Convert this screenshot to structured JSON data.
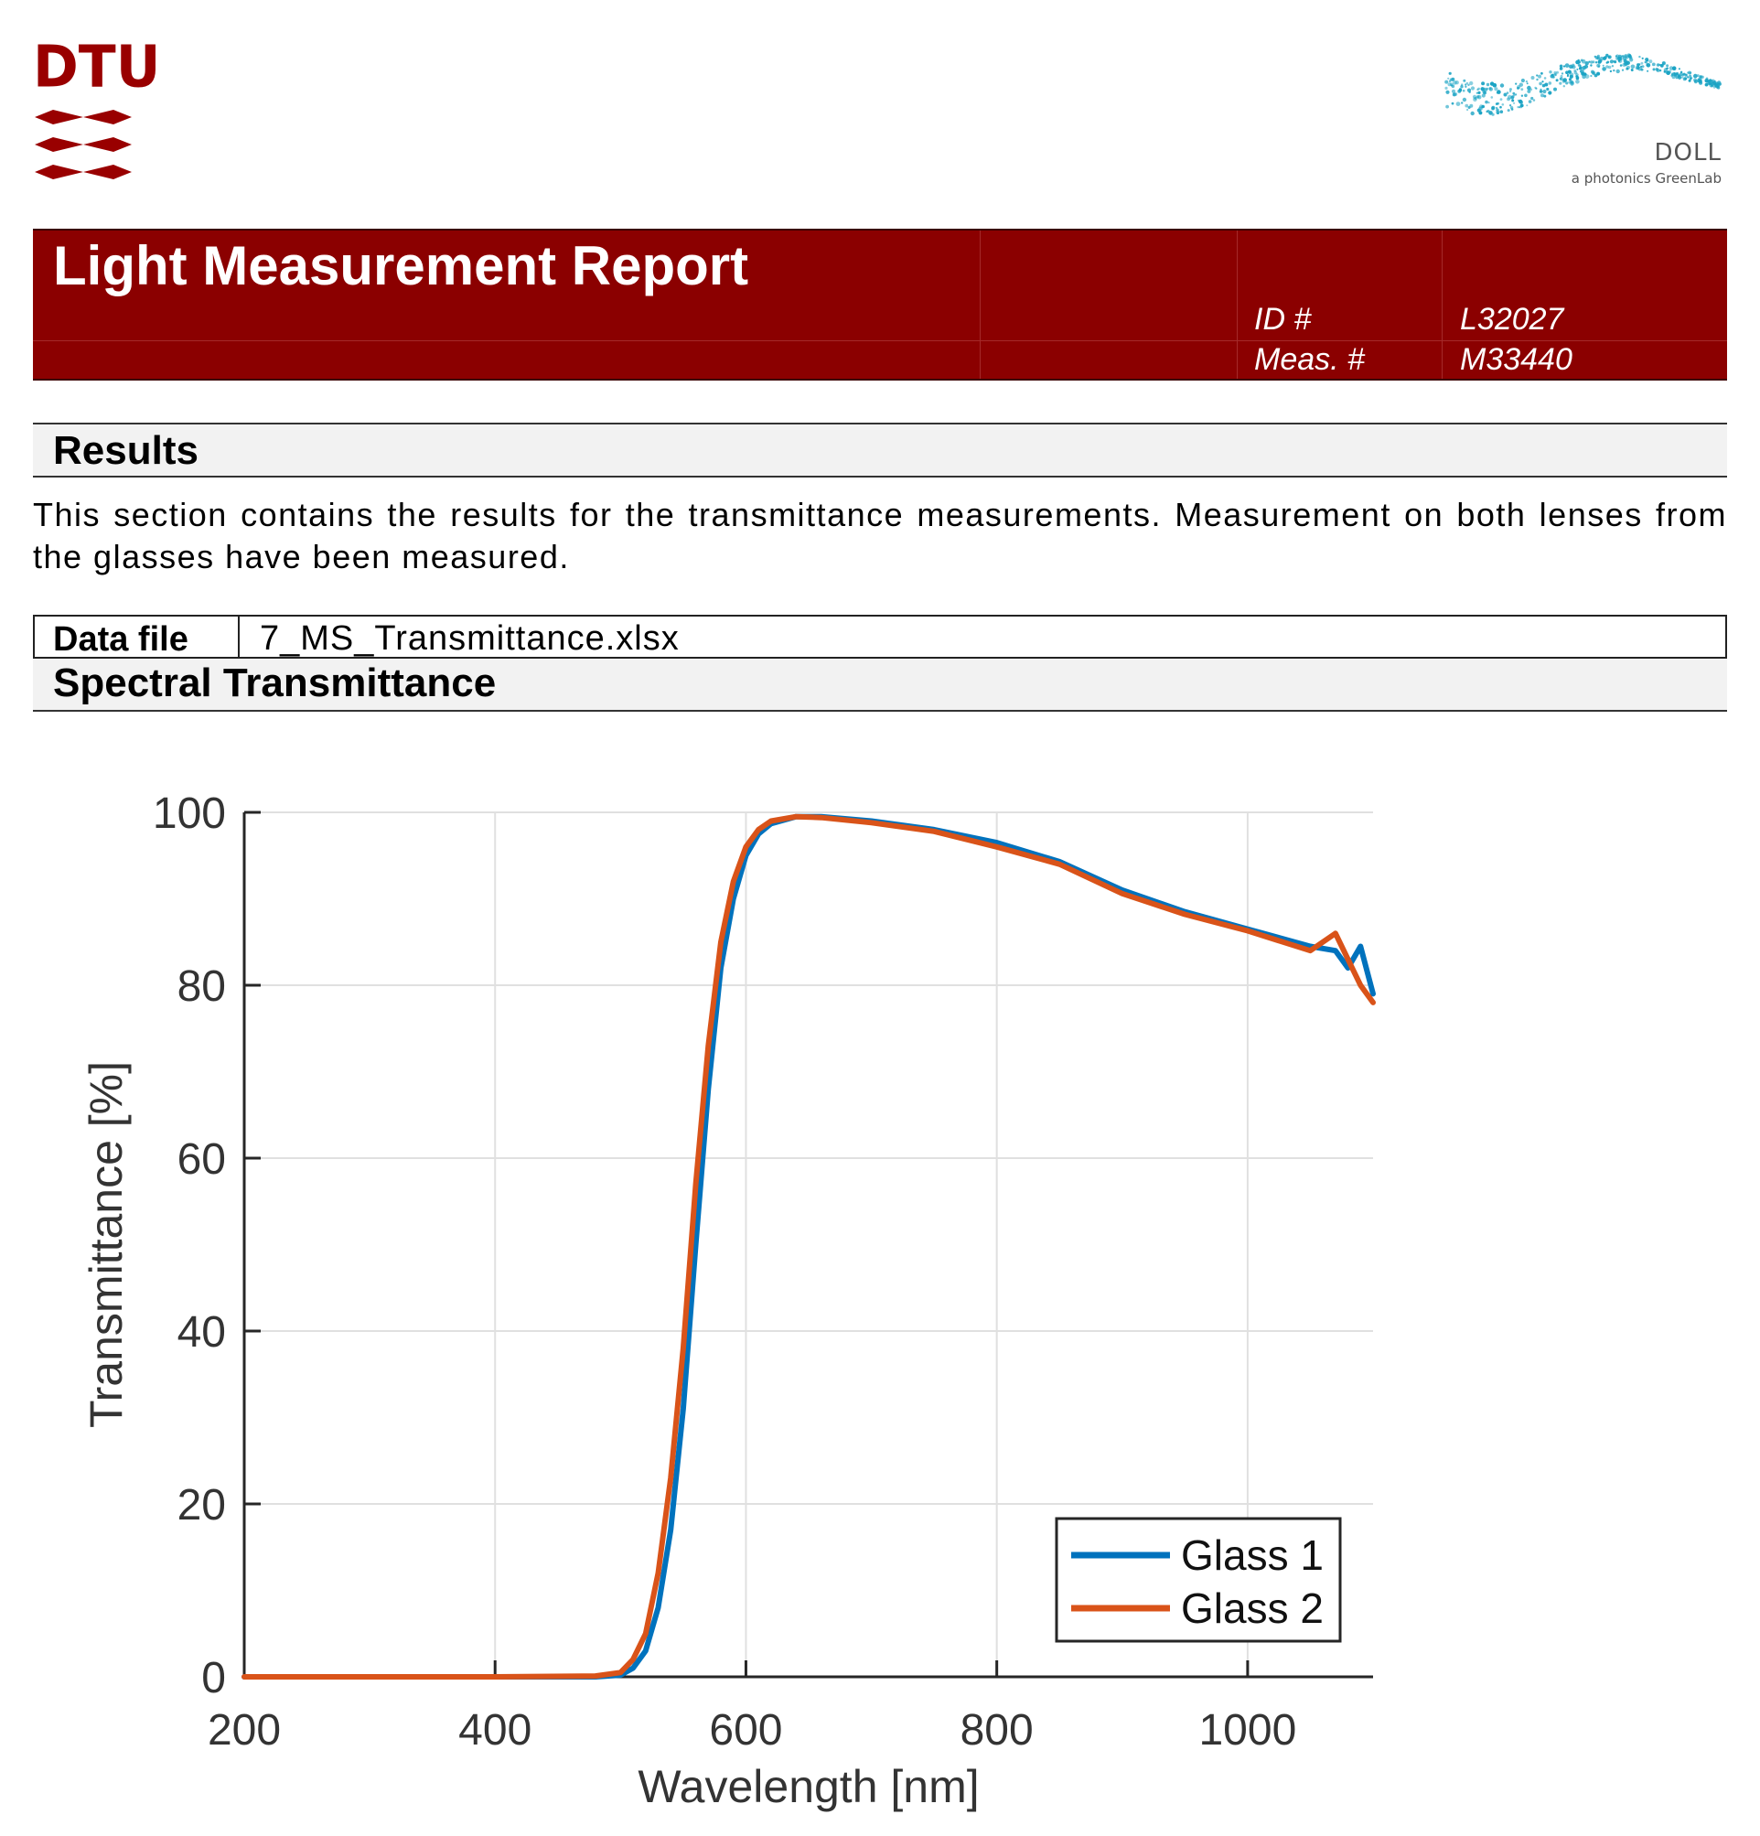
{
  "logos": {
    "dtu_text": "DTU",
    "doll_name": "DOLL",
    "doll_subtitle": "a photonics GreenLab",
    "dtu_color": "#990000",
    "doll_color": "#1aa3c4"
  },
  "header": {
    "title": "Light Measurement Report",
    "id_label": "ID #",
    "id_value": "L32027",
    "meas_label": "Meas. #",
    "meas_value": "M33440",
    "band_color": "#8b0000"
  },
  "results": {
    "heading": "Results",
    "text": "This section contains the results for the transmittance measurements. Measurement on both lenses from the glasses have been measured."
  },
  "data_file": {
    "label": "Data file",
    "value": "7_MS_Transmittance.xlsx"
  },
  "spectral": {
    "heading": "Spectral Transmittance"
  },
  "chart_data": {
    "type": "line",
    "title": "",
    "xlabel": "Wavelength [nm]",
    "ylabel": "Transmittance [%]",
    "xlim": [
      200,
      1100
    ],
    "ylim": [
      0,
      100
    ],
    "xticks": [
      200,
      400,
      600,
      800,
      1000
    ],
    "yticks": [
      0,
      20,
      40,
      60,
      80,
      100
    ],
    "grid": true,
    "legend_position": "bottom-right",
    "series": [
      {
        "name": "Glass 1",
        "color": "#0072bd",
        "x": [
          200,
          300,
          400,
          480,
          500,
          510,
          520,
          530,
          540,
          550,
          560,
          570,
          580,
          590,
          600,
          610,
          620,
          640,
          660,
          700,
          750,
          800,
          850,
          900,
          950,
          1000,
          1050,
          1070,
          1080,
          1090,
          1100
        ],
        "y": [
          0,
          0,
          0,
          0,
          0.2,
          1,
          3,
          8,
          17,
          31,
          50,
          68,
          82,
          90,
          95,
          97.5,
          98.7,
          99.5,
          99.5,
          99,
          98,
          96.5,
          94.3,
          91,
          88.5,
          86.5,
          84.5,
          84,
          82,
          84.5,
          79
        ]
      },
      {
        "name": "Glass 2",
        "color": "#d95319",
        "x": [
          200,
          300,
          400,
          480,
          500,
          510,
          520,
          530,
          540,
          550,
          560,
          570,
          580,
          590,
          600,
          610,
          620,
          640,
          660,
          700,
          750,
          800,
          850,
          900,
          950,
          1000,
          1050,
          1070,
          1080,
          1090,
          1100
        ],
        "y": [
          0,
          0,
          0,
          0.1,
          0.5,
          2,
          5,
          12,
          23,
          38,
          57,
          73,
          85,
          92,
          96,
          98,
          99,
          99.5,
          99.4,
          98.8,
          97.8,
          96,
          94,
          90.6,
          88.2,
          86.3,
          84,
          86,
          83,
          80,
          78
        ]
      }
    ]
  }
}
